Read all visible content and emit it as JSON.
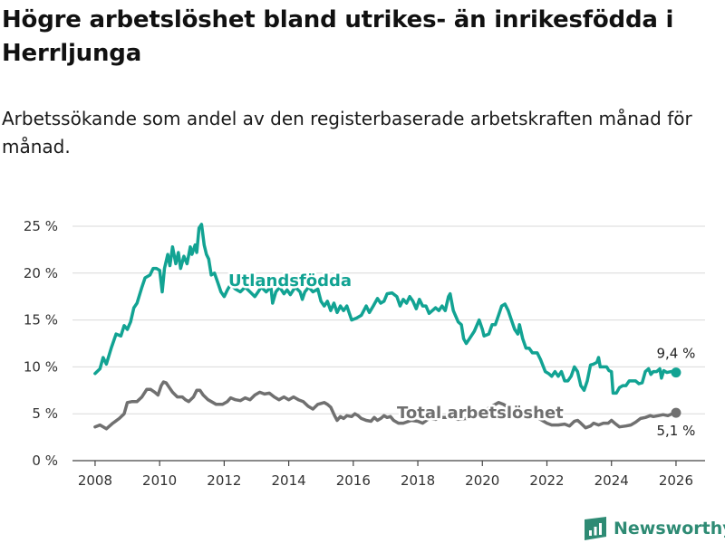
{
  "chart_data": {
    "type": "line",
    "title": "Högre arbetslöshet bland utrikes- än inrikesfödda i Herrljunga",
    "subtitle": "Arbetssökande som andel av den registerbaserade arbetskraften månad för månad.",
    "ylim": [
      0,
      25
    ],
    "xlim": [
      2007.3,
      2026.9
    ],
    "yticks": [
      0,
      5,
      10,
      15,
      20,
      25
    ],
    "ytick_labels": [
      "0 %",
      "5 %",
      "10 %",
      "15 %",
      "20 %",
      "25 %"
    ],
    "xticks": [
      2008,
      2010,
      2012,
      2014,
      2016,
      2018,
      2020,
      2022,
      2024,
      2026
    ],
    "xtick_labels": [
      "2008",
      "2010",
      "2012",
      "2014",
      "2016",
      "2018",
      "2020",
      "2022",
      "2024",
      "2026"
    ],
    "series": [
      {
        "name": "Utlandsfödda",
        "label": "Utlandsfödda",
        "color": "#12a393",
        "end_label": "9,4 %",
        "points": [
          [
            2008.0,
            9.3
          ],
          [
            2008.15,
            9.8
          ],
          [
            2008.25,
            11.0
          ],
          [
            2008.35,
            10.3
          ],
          [
            2008.5,
            12.0
          ],
          [
            2008.65,
            13.5
          ],
          [
            2008.8,
            13.3
          ],
          [
            2008.9,
            14.4
          ],
          [
            2009.0,
            14.0
          ],
          [
            2009.1,
            14.8
          ],
          [
            2009.2,
            16.3
          ],
          [
            2009.3,
            16.8
          ],
          [
            2009.45,
            18.5
          ],
          [
            2009.55,
            19.5
          ],
          [
            2009.7,
            19.8
          ],
          [
            2009.8,
            20.5
          ],
          [
            2009.9,
            20.5
          ],
          [
            2010.0,
            20.3
          ],
          [
            2010.08,
            18.0
          ],
          [
            2010.15,
            20.5
          ],
          [
            2010.25,
            22.0
          ],
          [
            2010.32,
            20.8
          ],
          [
            2010.4,
            22.8
          ],
          [
            2010.5,
            21.0
          ],
          [
            2010.58,
            22.2
          ],
          [
            2010.65,
            20.5
          ],
          [
            2010.75,
            21.8
          ],
          [
            2010.85,
            21.0
          ],
          [
            2010.95,
            22.8
          ],
          [
            2011.0,
            22.0
          ],
          [
            2011.1,
            23.0
          ],
          [
            2011.15,
            22.2
          ],
          [
            2011.22,
            24.8
          ],
          [
            2011.3,
            25.2
          ],
          [
            2011.38,
            23.0
          ],
          [
            2011.45,
            22.0
          ],
          [
            2011.52,
            21.5
          ],
          [
            2011.6,
            19.8
          ],
          [
            2011.7,
            20.0
          ],
          [
            2011.8,
            19.0
          ],
          [
            2011.9,
            18.0
          ],
          [
            2012.0,
            17.5
          ],
          [
            2012.1,
            18.2
          ],
          [
            2012.2,
            18.8
          ],
          [
            2012.35,
            18.3
          ],
          [
            2012.5,
            18.0
          ],
          [
            2012.65,
            18.5
          ],
          [
            2012.8,
            18.0
          ],
          [
            2012.95,
            17.5
          ],
          [
            2013.05,
            18.0
          ],
          [
            2013.15,
            18.5
          ],
          [
            2013.3,
            18.0
          ],
          [
            2013.45,
            18.5
          ],
          [
            2013.5,
            16.8
          ],
          [
            2013.6,
            18.0
          ],
          [
            2013.72,
            18.5
          ],
          [
            2013.85,
            17.8
          ],
          [
            2013.95,
            18.2
          ],
          [
            2014.05,
            17.7
          ],
          [
            2014.2,
            18.5
          ],
          [
            2014.35,
            18.0
          ],
          [
            2014.42,
            17.2
          ],
          [
            2014.5,
            18.0
          ],
          [
            2014.62,
            18.5
          ],
          [
            2014.75,
            18.0
          ],
          [
            2014.9,
            18.3
          ],
          [
            2015.0,
            17.0
          ],
          [
            2015.1,
            16.5
          ],
          [
            2015.2,
            17.0
          ],
          [
            2015.3,
            16.0
          ],
          [
            2015.4,
            16.8
          ],
          [
            2015.5,
            15.8
          ],
          [
            2015.6,
            16.5
          ],
          [
            2015.7,
            16.0
          ],
          [
            2015.8,
            16.5
          ],
          [
            2015.95,
            15.0
          ],
          [
            2016.1,
            15.2
          ],
          [
            2016.25,
            15.5
          ],
          [
            2016.4,
            16.5
          ],
          [
            2016.5,
            15.8
          ],
          [
            2016.62,
            16.5
          ],
          [
            2016.75,
            17.3
          ],
          [
            2016.85,
            16.8
          ],
          [
            2016.95,
            17.0
          ],
          [
            2017.05,
            17.8
          ],
          [
            2017.2,
            17.9
          ],
          [
            2017.35,
            17.5
          ],
          [
            2017.45,
            16.5
          ],
          [
            2017.55,
            17.2
          ],
          [
            2017.65,
            16.8
          ],
          [
            2017.75,
            17.5
          ],
          [
            2017.85,
            17.0
          ],
          [
            2017.95,
            16.2
          ],
          [
            2018.05,
            17.2
          ],
          [
            2018.15,
            16.5
          ],
          [
            2018.25,
            16.5
          ],
          [
            2018.35,
            15.7
          ],
          [
            2018.45,
            16.0
          ],
          [
            2018.55,
            16.3
          ],
          [
            2018.65,
            16.0
          ],
          [
            2018.75,
            16.5
          ],
          [
            2018.85,
            16.0
          ],
          [
            2018.95,
            17.5
          ],
          [
            2019.0,
            17.8
          ],
          [
            2019.1,
            16.0
          ],
          [
            2019.25,
            14.8
          ],
          [
            2019.35,
            14.5
          ],
          [
            2019.42,
            13.0
          ],
          [
            2019.5,
            12.5
          ],
          [
            2019.6,
            13.0
          ],
          [
            2019.75,
            13.8
          ],
          [
            2019.9,
            15.0
          ],
          [
            2020.0,
            14.0
          ],
          [
            2020.05,
            13.3
          ],
          [
            2020.2,
            13.5
          ],
          [
            2020.3,
            14.5
          ],
          [
            2020.4,
            14.5
          ],
          [
            2020.5,
            15.5
          ],
          [
            2020.6,
            16.5
          ],
          [
            2020.7,
            16.7
          ],
          [
            2020.8,
            16.0
          ],
          [
            2020.9,
            15.0
          ],
          [
            2021.0,
            14.0
          ],
          [
            2021.1,
            13.5
          ],
          [
            2021.15,
            14.5
          ],
          [
            2021.25,
            13.0
          ],
          [
            2021.35,
            12.0
          ],
          [
            2021.45,
            12.0
          ],
          [
            2021.55,
            11.5
          ],
          [
            2021.7,
            11.5
          ],
          [
            2021.8,
            10.8
          ],
          [
            2021.95,
            9.5
          ],
          [
            2022.05,
            9.3
          ],
          [
            2022.15,
            9.0
          ],
          [
            2022.25,
            9.5
          ],
          [
            2022.35,
            9.0
          ],
          [
            2022.45,
            9.5
          ],
          [
            2022.55,
            8.5
          ],
          [
            2022.65,
            8.5
          ],
          [
            2022.75,
            9.0
          ],
          [
            2022.85,
            10.0
          ],
          [
            2022.95,
            9.5
          ],
          [
            2023.05,
            8.0
          ],
          [
            2023.15,
            7.5
          ],
          [
            2023.25,
            8.5
          ],
          [
            2023.35,
            10.2
          ],
          [
            2023.45,
            10.3
          ],
          [
            2023.55,
            10.5
          ],
          [
            2023.6,
            11.0
          ],
          [
            2023.65,
            10.0
          ],
          [
            2023.75,
            10.0
          ],
          [
            2023.85,
            10.0
          ],
          [
            2023.92,
            9.6
          ],
          [
            2024.0,
            9.5
          ],
          [
            2024.05,
            7.2
          ],
          [
            2024.15,
            7.2
          ],
          [
            2024.25,
            7.8
          ],
          [
            2024.35,
            8.0
          ],
          [
            2024.45,
            8.0
          ],
          [
            2024.55,
            8.5
          ],
          [
            2024.65,
            8.5
          ],
          [
            2024.75,
            8.5
          ],
          [
            2024.85,
            8.2
          ],
          [
            2024.95,
            8.3
          ],
          [
            2025.05,
            9.5
          ],
          [
            2025.15,
            9.8
          ],
          [
            2025.22,
            9.2
          ],
          [
            2025.3,
            9.5
          ],
          [
            2025.4,
            9.5
          ],
          [
            2025.5,
            9.8
          ],
          [
            2025.55,
            8.8
          ],
          [
            2025.62,
            9.6
          ],
          [
            2025.72,
            9.4
          ],
          [
            2025.85,
            9.5
          ],
          [
            2026.0,
            9.4
          ]
        ]
      },
      {
        "name": "Total arbetslöshet",
        "label": "Total arbetslöshet",
        "color": "#707070",
        "end_label": "5,1 %",
        "points": [
          [
            2008.0,
            3.6
          ],
          [
            2008.15,
            3.8
          ],
          [
            2008.35,
            3.4
          ],
          [
            2008.55,
            4.0
          ],
          [
            2008.75,
            4.5
          ],
          [
            2008.9,
            5.0
          ],
          [
            2009.0,
            6.2
          ],
          [
            2009.15,
            6.3
          ],
          [
            2009.3,
            6.3
          ],
          [
            2009.45,
            6.8
          ],
          [
            2009.6,
            7.6
          ],
          [
            2009.72,
            7.6
          ],
          [
            2009.85,
            7.3
          ],
          [
            2009.95,
            7.0
          ],
          [
            2010.05,
            8.0
          ],
          [
            2010.12,
            8.4
          ],
          [
            2010.2,
            8.3
          ],
          [
            2010.3,
            7.8
          ],
          [
            2010.4,
            7.3
          ],
          [
            2010.55,
            6.8
          ],
          [
            2010.7,
            6.8
          ],
          [
            2010.8,
            6.5
          ],
          [
            2010.9,
            6.3
          ],
          [
            2011.05,
            6.8
          ],
          [
            2011.15,
            7.5
          ],
          [
            2011.25,
            7.5
          ],
          [
            2011.35,
            7.0
          ],
          [
            2011.5,
            6.5
          ],
          [
            2011.6,
            6.3
          ],
          [
            2011.75,
            6.0
          ],
          [
            2011.95,
            6.0
          ],
          [
            2012.1,
            6.3
          ],
          [
            2012.2,
            6.7
          ],
          [
            2012.35,
            6.5
          ],
          [
            2012.5,
            6.4
          ],
          [
            2012.65,
            6.7
          ],
          [
            2012.8,
            6.5
          ],
          [
            2012.95,
            7.0
          ],
          [
            2013.1,
            7.3
          ],
          [
            2013.25,
            7.1
          ],
          [
            2013.4,
            7.2
          ],
          [
            2013.55,
            6.8
          ],
          [
            2013.7,
            6.5
          ],
          [
            2013.85,
            6.8
          ],
          [
            2014.0,
            6.5
          ],
          [
            2014.15,
            6.8
          ],
          [
            2014.3,
            6.5
          ],
          [
            2014.45,
            6.3
          ],
          [
            2014.6,
            5.8
          ],
          [
            2014.75,
            5.5
          ],
          [
            2014.9,
            6.0
          ],
          [
            2015.0,
            6.1
          ],
          [
            2015.1,
            6.2
          ],
          [
            2015.2,
            6.0
          ],
          [
            2015.3,
            5.7
          ],
          [
            2015.42,
            4.8
          ],
          [
            2015.5,
            4.3
          ],
          [
            2015.6,
            4.7
          ],
          [
            2015.7,
            4.5
          ],
          [
            2015.8,
            4.8
          ],
          [
            2015.95,
            4.7
          ],
          [
            2016.05,
            5.0
          ],
          [
            2016.15,
            4.8
          ],
          [
            2016.25,
            4.5
          ],
          [
            2016.4,
            4.3
          ],
          [
            2016.55,
            4.2
          ],
          [
            2016.65,
            4.6
          ],
          [
            2016.75,
            4.3
          ],
          [
            2016.85,
            4.5
          ],
          [
            2016.95,
            4.8
          ],
          [
            2017.05,
            4.6
          ],
          [
            2017.15,
            4.7
          ],
          [
            2017.25,
            4.3
          ],
          [
            2017.4,
            4.0
          ],
          [
            2017.55,
            4.0
          ],
          [
            2017.8,
            4.3
          ],
          [
            2018.0,
            4.2
          ],
          [
            2018.15,
            4.0
          ],
          [
            2018.35,
            4.5
          ],
          [
            2018.55,
            4.4
          ],
          [
            2018.75,
            4.6
          ],
          [
            2019.0,
            4.6
          ],
          [
            2019.25,
            4.4
          ],
          [
            2019.5,
            4.5
          ],
          [
            2019.75,
            4.7
          ],
          [
            2020.0,
            4.8
          ],
          [
            2020.15,
            5.5
          ],
          [
            2020.3,
            5.8
          ],
          [
            2020.5,
            6.2
          ],
          [
            2020.65,
            6.0
          ],
          [
            2020.8,
            5.7
          ],
          [
            2020.95,
            5.3
          ],
          [
            2021.1,
            5.1
          ],
          [
            2021.3,
            4.9
          ],
          [
            2021.5,
            4.7
          ],
          [
            2021.7,
            4.6
          ],
          [
            2021.9,
            4.2
          ],
          [
            2022.0,
            4.0
          ],
          [
            2022.15,
            3.8
          ],
          [
            2022.35,
            3.8
          ],
          [
            2022.55,
            3.9
          ],
          [
            2022.7,
            3.7
          ],
          [
            2022.85,
            4.2
          ],
          [
            2022.95,
            4.3
          ],
          [
            2023.05,
            4.0
          ],
          [
            2023.2,
            3.5
          ],
          [
            2023.35,
            3.7
          ],
          [
            2023.45,
            4.0
          ],
          [
            2023.6,
            3.8
          ],
          [
            2023.75,
            4.0
          ],
          [
            2023.9,
            4.0
          ],
          [
            2024.0,
            4.3
          ],
          [
            2024.1,
            4.0
          ],
          [
            2024.25,
            3.6
          ],
          [
            2024.45,
            3.7
          ],
          [
            2024.6,
            3.8
          ],
          [
            2024.75,
            4.1
          ],
          [
            2024.9,
            4.5
          ],
          [
            2025.05,
            4.6
          ],
          [
            2025.2,
            4.8
          ],
          [
            2025.3,
            4.7
          ],
          [
            2025.45,
            4.8
          ],
          [
            2025.6,
            4.9
          ],
          [
            2025.75,
            4.8
          ],
          [
            2025.88,
            5.0
          ],
          [
            2026.0,
            5.1
          ]
        ]
      }
    ]
  },
  "footer": {
    "brand_name": "Newsworthy",
    "brand_color": "#2e8b74",
    "brand_icon": "bar-chart-logo-icon"
  }
}
